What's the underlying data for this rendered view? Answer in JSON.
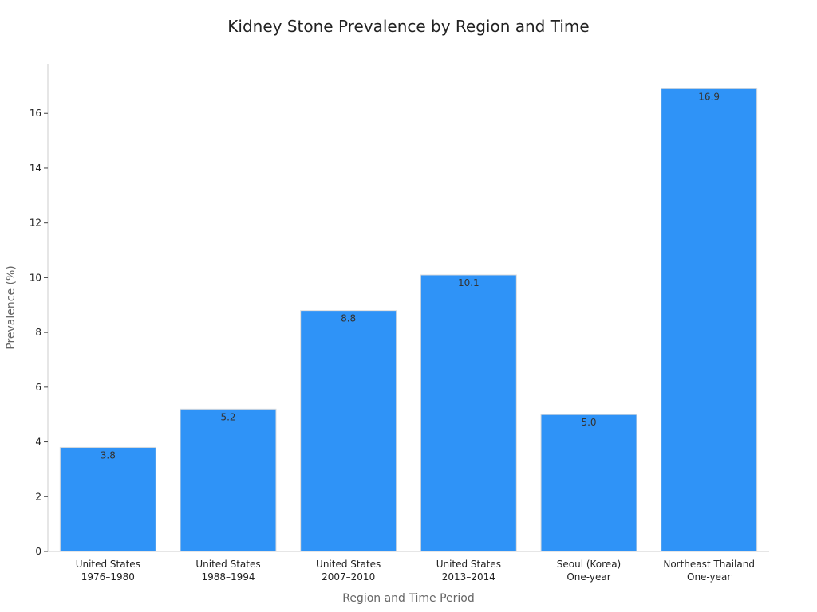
{
  "chart_data": {
    "type": "bar",
    "title": "Kidney Stone Prevalence by Region and Time",
    "xlabel": "Region and Time Period",
    "ylabel": "Prevalence (%)",
    "categories": [
      [
        "United States",
        "1976–1980"
      ],
      [
        "United States",
        "1988–1994"
      ],
      [
        "United States",
        "2007–2010"
      ],
      [
        "United States",
        "2013–2014"
      ],
      [
        "Seoul (Korea)",
        "One-year"
      ],
      [
        "Northeast Thailand",
        "One-year"
      ]
    ],
    "values": [
      3.8,
      5.2,
      8.8,
      10.1,
      5.0,
      16.9
    ],
    "data_labels": [
      "3.8",
      "5.2",
      "8.8",
      "10.1",
      "5.0",
      "16.9"
    ],
    "ylim": [
      0,
      17.7
    ],
    "yticks": [
      0,
      2,
      4,
      6,
      8,
      10,
      12,
      14,
      16
    ],
    "grid": false,
    "legend": "none",
    "bar_color": "#2f93f7"
  }
}
